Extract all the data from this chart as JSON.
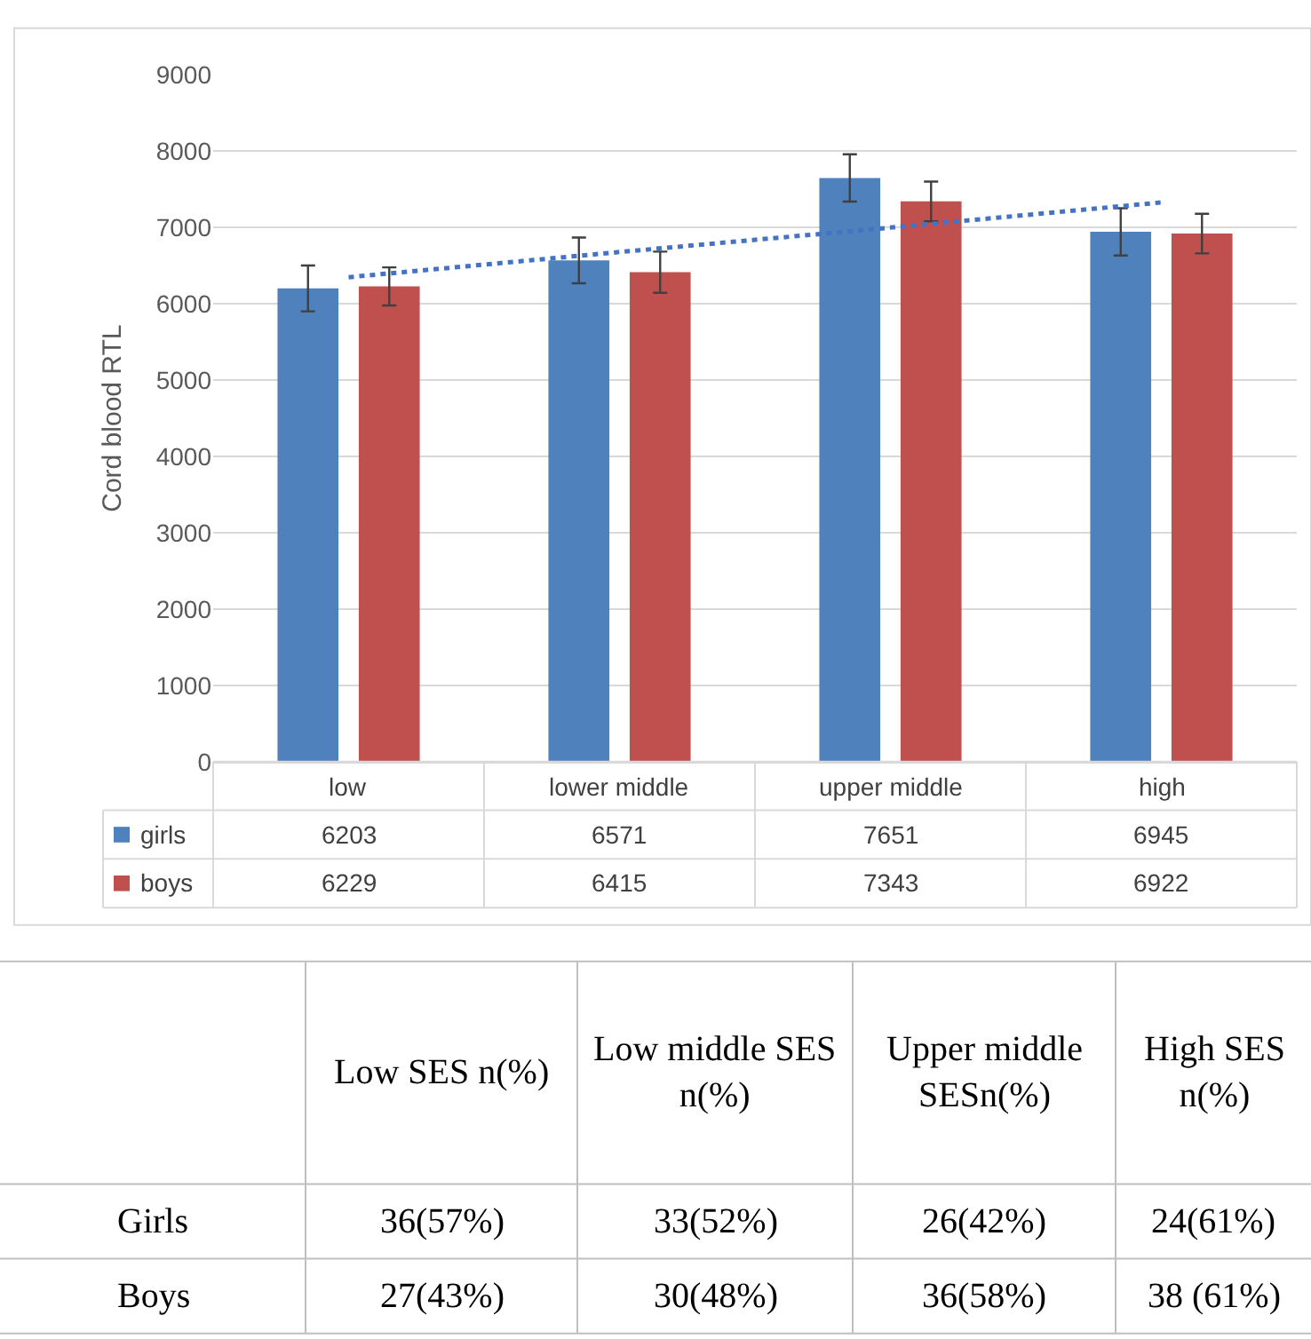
{
  "chart_data": [
    {
      "type": "bar",
      "ylabel": "Cord blood RTL",
      "categories": [
        "low",
        "lower middle",
        "upper middle",
        "high"
      ],
      "series": [
        {
          "name": "girls",
          "color": "#4f81bd",
          "values": [
            6203,
            6571,
            7651,
            6945
          ],
          "value_labels": [
            "6203",
            "6571",
            "7651",
            "6945"
          ],
          "errors": [
            300,
            300,
            310,
            310
          ]
        },
        {
          "name": "boys",
          "color": "#c0504d",
          "values": [
            6229,
            6415,
            7343,
            6922
          ],
          "value_labels": [
            "6229",
            "6415",
            "7343",
            "6922"
          ],
          "errors": [
            250,
            270,
            260,
            260
          ]
        },
        {
          "type": "line",
          "color": "#4472c4",
          "line_style": "dotted",
          "marker": "none",
          "values": [
            6350,
            6680,
            7000,
            7330
          ]
        }
      ],
      "ylim": [
        0,
        9000
      ],
      "yticks": [
        0,
        1000,
        2000,
        3000,
        4000,
        5000,
        6000,
        7000,
        8000,
        9000
      ],
      "grid": "y",
      "legend": "bottom left"
    },
    {
      "type": "other",
      "categories": [
        "Low SES n(%)",
        "Low middle SES n(%)",
        "Upper middle SESn(%)",
        "High SES n(%)"
      ],
      "y_categories": [
        "Girls",
        "Boys"
      ],
      "cell_labels": [
        [
          "36(57%)",
          "33(52%)",
          "26(42%)",
          "24(61%)"
        ],
        [
          "27(43%)",
          "30(48%)",
          "36(58%)",
          "38 (61%)"
        ]
      ]
    }
  ]
}
